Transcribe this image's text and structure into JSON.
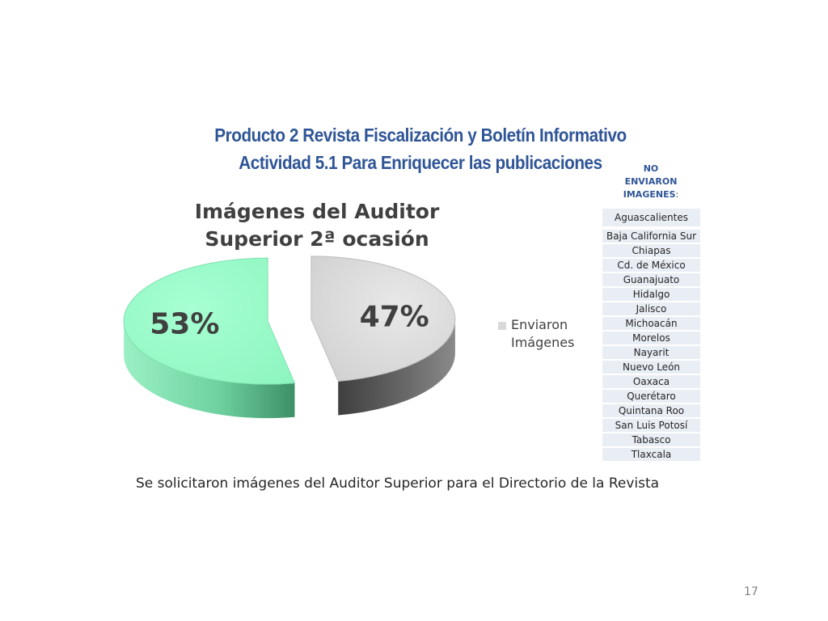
{
  "header": {
    "title_line1": "Producto 2 Revista Fiscalización y Boletín Informativo",
    "title_line2": "Actividad  5.1  Para Enriquecer las publicaciones"
  },
  "chart_data": {
    "type": "pie",
    "title": "Imágenes del Auditor Superior 2ª ocasión",
    "title_lines": [
      "Imágenes del Auditor",
      "Superior 2ª ocasión"
    ],
    "slices": [
      {
        "name": "Enviaron Imágenes",
        "value": 47,
        "label": "47%",
        "color": "#d9d9d9"
      },
      {
        "name": "",
        "value": 53,
        "label": "53%",
        "color": "#99ffcc"
      }
    ],
    "legend": {
      "position": "right",
      "entries": [
        "Enviaron Imágenes"
      ]
    },
    "style": "3d-exploded"
  },
  "no_sent": {
    "header_lines": [
      "NO",
      "ENVIARON",
      "IMAGENES"
    ],
    "header_suffix": ":",
    "states": [
      "Aguascalientes",
      "Baja  California Sur",
      "Chiapas",
      "Cd. de México",
      "Guanajuato",
      "Hidalgo",
      "Jalisco",
      "Michoacán",
      "Morelos",
      "Nayarit",
      "Nuevo León",
      "Oaxaca",
      "Querétaro",
      "Quintana Roo",
      "San Luis Potosí",
      "Tabasco",
      "Tlaxcala"
    ]
  },
  "caption": "Se solicitaron imágenes del Auditor Superior para el Directorio de la Revista",
  "page_number": "17",
  "colors": {
    "title": "#2f5597",
    "chart_text": "#404040",
    "list_bg": "#e9edf4"
  }
}
